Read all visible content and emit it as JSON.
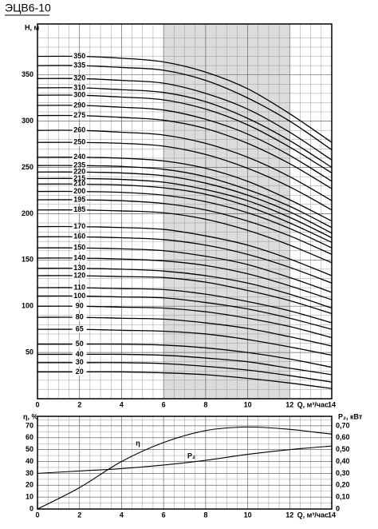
{
  "chart_data": [
    {
      "type": "line",
      "title": "ЭЦВ6-10",
      "ylabel": "H, м",
      "xlabel": "Q, м³/час",
      "color": "#000000",
      "grid": true,
      "highlight_xrange": [
        6,
        12
      ],
      "xlim": [
        0,
        14
      ],
      "ylim": [
        0,
        405
      ],
      "xticks": [
        0,
        2,
        4,
        6,
        8,
        10,
        12,
        14
      ],
      "yticks": [
        50,
        100,
        150,
        200,
        250,
        300,
        350
      ],
      "x": [
        0,
        2,
        4,
        6,
        8,
        10,
        12,
        14
      ],
      "series": [
        {
          "name": "350",
          "values": [
            370,
            370,
            368,
            364,
            353,
            335,
            308,
            277
          ]
        },
        {
          "name": "335",
          "values": [
            360,
            360,
            358,
            355,
            344,
            325,
            300,
            269
          ]
        },
        {
          "name": "320",
          "values": [
            346,
            346,
            344,
            341,
            330,
            313,
            288,
            258
          ]
        },
        {
          "name": "310",
          "values": [
            336,
            336,
            334,
            331,
            321,
            303,
            279,
            250
          ]
        },
        {
          "name": "300",
          "values": [
            328,
            328,
            326,
            323,
            313,
            296,
            272,
            244
          ]
        },
        {
          "name": "290",
          "values": [
            317,
            317,
            315,
            312,
            302,
            286,
            263,
            235
          ]
        },
        {
          "name": "275",
          "values": [
            306,
            306,
            304,
            301,
            292,
            276,
            254,
            227
          ]
        },
        {
          "name": "260",
          "values": [
            290,
            290,
            288,
            285,
            276,
            261,
            240,
            214
          ]
        },
        {
          "name": "250",
          "values": [
            277,
            277,
            276,
            273,
            264,
            249,
            229,
            204
          ]
        },
        {
          "name": "240",
          "values": [
            261,
            261,
            260,
            257,
            249,
            235,
            215,
            192
          ]
        },
        {
          "name": "235",
          "values": [
            252,
            252,
            251,
            248,
            240,
            226,
            208,
            185
          ]
        },
        {
          "name": "220",
          "values": [
            245,
            245,
            244,
            241,
            233,
            220,
            202,
            179
          ]
        },
        {
          "name": "215",
          "values": [
            238,
            238,
            237,
            234,
            226,
            214,
            196,
            174
          ]
        },
        {
          "name": "210",
          "values": [
            232,
            232,
            231,
            228,
            221,
            208,
            190,
            169
          ]
        },
        {
          "name": "200",
          "values": [
            224,
            224,
            223,
            220,
            213,
            201,
            184,
            163
          ]
        },
        {
          "name": "195",
          "values": [
            215,
            215,
            214,
            211,
            204,
            192,
            176,
            156
          ]
        },
        {
          "name": "185",
          "values": [
            204,
            204,
            203,
            201,
            194,
            182,
            166,
            147
          ]
        },
        {
          "name": "170",
          "values": [
            186,
            186,
            185,
            183,
            176,
            166,
            151,
            133
          ]
        },
        {
          "name": "160",
          "values": [
            175,
            175,
            174,
            172,
            166,
            156,
            142,
            125
          ]
        },
        {
          "name": "150",
          "values": [
            163,
            163,
            162,
            160,
            154,
            145,
            131,
            115
          ]
        },
        {
          "name": "140",
          "values": [
            152,
            152,
            151,
            149,
            144,
            135,
            122,
            107
          ]
        },
        {
          "name": "130",
          "values": [
            141,
            141,
            140,
            138,
            133,
            125,
            113,
            98
          ]
        },
        {
          "name": "120",
          "values": [
            133,
            133,
            132,
            131,
            126,
            117,
            106,
            92
          ]
        },
        {
          "name": "110",
          "values": [
            120,
            120,
            119,
            118,
            113,
            105,
            95,
            82
          ]
        },
        {
          "name": "100",
          "values": [
            111,
            111,
            110,
            109,
            104,
            97,
            87,
            75
          ]
        },
        {
          "name": "90",
          "values": [
            100,
            100,
            99,
            98,
            94,
            87,
            78,
            66
          ]
        },
        {
          "name": "80",
          "values": [
            88,
            88,
            87,
            86,
            82,
            76,
            67,
            57
          ]
        },
        {
          "name": "65",
          "values": [
            75,
            75,
            74,
            73,
            70,
            64,
            56,
            47
          ]
        },
        {
          "name": "50",
          "values": [
            59,
            59,
            59,
            58,
            55,
            50,
            43,
            34
          ]
        },
        {
          "name": "40",
          "values": [
            48,
            48,
            48,
            47,
            44,
            40,
            33,
            26
          ]
        },
        {
          "name": "30",
          "values": [
            39,
            39,
            39,
            38,
            35,
            31,
            25,
            18
          ]
        },
        {
          "name": "20",
          "values": [
            29,
            29,
            29,
            28,
            26,
            22,
            17,
            11
          ]
        }
      ]
    },
    {
      "type": "line",
      "ylabel": "η, %",
      "y2label": "P₂, кВт",
      "xlabel": "Q, м³/час",
      "color": "#000000",
      "grid": true,
      "xlim": [
        0,
        14
      ],
      "ylim": [
        0,
        78
      ],
      "y2lim": [
        0,
        0.78
      ],
      "xticks": [
        0,
        2,
        4,
        6,
        8,
        10,
        12,
        14
      ],
      "yticks": [
        0,
        10,
        20,
        30,
        40,
        50,
        60,
        70
      ],
      "y2ticks": [
        0,
        {
          "value": 0.1,
          "label": "0,10"
        },
        {
          "value": 0.2,
          "label": "0,20"
        },
        {
          "value": 0.3,
          "label": "0,30"
        },
        {
          "value": 0.4,
          "label": "0,40"
        },
        {
          "value": 0.5,
          "label": "0,50"
        },
        {
          "value": 0.6,
          "label": "0,60"
        },
        {
          "value": 0.7,
          "label": "0,70"
        }
      ],
      "x": [
        0,
        2,
        4,
        6,
        8,
        10,
        12,
        14
      ],
      "series": [
        {
          "name": "η",
          "values": [
            0,
            18,
            40,
            56,
            66,
            69,
            67,
            63
          ]
        },
        {
          "name": "P₂",
          "axis": "y2",
          "values": [
            0.3,
            0.32,
            0.34,
            0.37,
            0.41,
            0.46,
            0.5,
            0.53
          ]
        }
      ]
    }
  ]
}
